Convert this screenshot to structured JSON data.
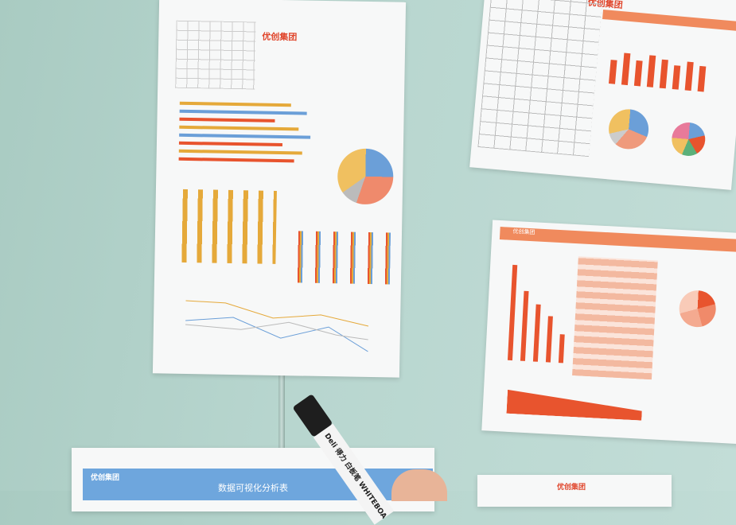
{
  "scene": "Printed data visualization reports taped to a glass whiteboard, with a hand holding a whiteboard marker",
  "papers": {
    "top_left": {
      "logo_text": "优创集团"
    },
    "top_right": {
      "logo_text": "优创集团"
    },
    "mid_right": {
      "logo_text": "优创集团"
    },
    "bottom_left": {
      "logo_text": "优创集团",
      "title": "数据可视化分析表"
    },
    "bottom_right": {
      "logo_text": "优创集团"
    }
  },
  "marker": {
    "brand": "Deli 得力",
    "label": "白板笔 WHITEBOA"
  },
  "colors": {
    "wall": "#b8d6cf",
    "accent": "#e8542e",
    "blue": "#6ea6dd"
  }
}
